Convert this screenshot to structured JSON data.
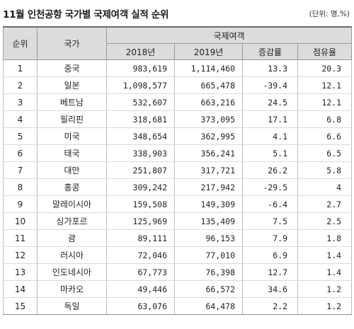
{
  "title": "11월 인천공항 국가별 국제여객 실적 순위",
  "unit": "(단위: 명,%)",
  "columns": {
    "rank": "순위",
    "country": "국가",
    "group": "국제여객",
    "y2018": "2018년",
    "y2019": "2019년",
    "change": "증감률",
    "share": "점유율"
  },
  "rows": [
    {
      "rank": "1",
      "country": "중국",
      "y2018": "983,619",
      "y2019": "1,114,460",
      "change": "13.3",
      "share": "20.3"
    },
    {
      "rank": "2",
      "country": "일본",
      "y2018": "1,098,577",
      "y2019": "665,478",
      "change": "-39.4",
      "share": "12.1"
    },
    {
      "rank": "3",
      "country": "베트남",
      "y2018": "532,607",
      "y2019": "663,216",
      "change": "24.5",
      "share": "12.1"
    },
    {
      "rank": "4",
      "country": "필리핀",
      "y2018": "318,681",
      "y2019": "373,095",
      "change": "17.1",
      "share": "6.8"
    },
    {
      "rank": "5",
      "country": "미국",
      "y2018": "348,654",
      "y2019": "362,995",
      "change": "4.1",
      "share": "6.6"
    },
    {
      "rank": "6",
      "country": "태국",
      "y2018": "338,903",
      "y2019": "356,241",
      "change": "5.1",
      "share": "6.5"
    },
    {
      "rank": "7",
      "country": "대만",
      "y2018": "251,807",
      "y2019": "317,721",
      "change": "26.2",
      "share": "5.8"
    },
    {
      "rank": "8",
      "country": "홍콩",
      "y2018": "309,242",
      "y2019": "217,942",
      "change": "-29.5",
      "share": "4"
    },
    {
      "rank": "9",
      "country": "말레이시아",
      "y2018": "159,508",
      "y2019": "149,309",
      "change": "-6.4",
      "share": "2.7"
    },
    {
      "rank": "10",
      "country": "싱가포르",
      "y2018": "125,969",
      "y2019": "135,409",
      "change": "7.5",
      "share": "2.5"
    },
    {
      "rank": "11",
      "country": "괌",
      "y2018": "89,111",
      "y2019": "96,153",
      "change": "7.9",
      "share": "1.8"
    },
    {
      "rank": "12",
      "country": "러시아",
      "y2018": "72,046",
      "y2019": "77,010",
      "change": "6.9",
      "share": "1.4"
    },
    {
      "rank": "13",
      "country": "인도네시아",
      "y2018": "67,773",
      "y2019": "76,398",
      "change": "12.7",
      "share": "1.4"
    },
    {
      "rank": "14",
      "country": "마카오",
      "y2018": "49,446",
      "y2019": "66,572",
      "change": "34.6",
      "share": "1.2"
    },
    {
      "rank": "15",
      "country": "독일",
      "y2018": "63,076",
      "y2019": "64,478",
      "change": "2.2",
      "share": "1.2"
    }
  ]
}
